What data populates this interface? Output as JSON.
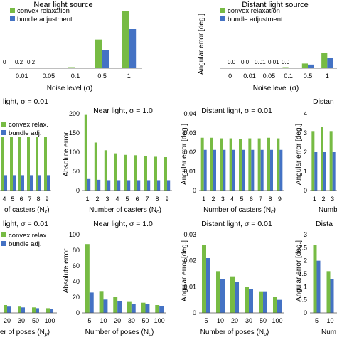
{
  "colors": {
    "convex": "#77bb44",
    "bundle": "#4472c4",
    "axis": "#555555"
  },
  "chart_data": [
    {
      "type": "bar",
      "title": "Near light source",
      "xlabel": "Noise level (σ)",
      "ylabel": "",
      "categories": [
        "0.01",
        "0.05",
        "0.1",
        "0.5",
        "1"
      ],
      "ylim": [
        0,
        1.2
      ],
      "legend": "top-left",
      "series": [
        {
          "name": "convex relaxation",
          "values": [
            0.0,
            0.01,
            0.02,
            0.55,
            1.1
          ]
        },
        {
          "name": "bundle adjustment",
          "values": [
            0.0,
            0.005,
            0.01,
            0.35,
            0.75
          ]
        }
      ],
      "annotations": [
        "0",
        "0.2",
        "0.2"
      ]
    },
    {
      "type": "bar",
      "title": "Distant light source",
      "xlabel": "Noise level (σ)",
      "ylabel": "Angular error [deg.]",
      "categories": [
        "0",
        "0.01",
        "0.05",
        "0.1",
        "0.5",
        "1"
      ],
      "ylim": [
        0,
        1.2
      ],
      "legend": "top-left",
      "series": [
        {
          "name": "convex relaxation",
          "values": [
            0.0,
            0.0,
            0.01,
            0.02,
            0.09,
            0.3
          ]
        },
        {
          "name": "bundle adjustment",
          "values": [
            0.0,
            0.0,
            0.005,
            0.01,
            0.07,
            0.2
          ]
        }
      ],
      "annotations": [
        "0.0",
        "0.0",
        "0.01",
        "0.01",
        "0.0"
      ]
    },
    {
      "type": "bar",
      "title": "light, σ = 0.01",
      "xlabel": "of casters (N",
      "xsub": "c",
      "categories": [
        "4",
        "5",
        "6",
        "7",
        "8",
        "9"
      ],
      "ylim": [
        0,
        100
      ],
      "legend": "top-left",
      "series": [
        {
          "name": "convex relax.",
          "values": [
            70,
            70,
            70,
            70,
            70,
            70
          ]
        },
        {
          "name": "bundle adj.",
          "values": [
            20,
            20,
            20,
            20,
            20,
            20
          ]
        }
      ]
    },
    {
      "type": "bar",
      "title": "Near light, σ = 1.0",
      "xlabel": "Number of casters (N",
      "xsub": "c",
      "ylabel": "Absolute error",
      "categories": [
        "1",
        "2",
        "3",
        "4",
        "5",
        "6",
        "7",
        "8",
        "9"
      ],
      "ylim": [
        0,
        200
      ],
      "yticks": [
        "0",
        "50",
        "100",
        "150",
        "200"
      ],
      "series": [
        {
          "name": "convex relax.",
          "values": [
            197,
            125,
            105,
            97,
            93,
            92,
            90,
            88,
            87
          ]
        },
        {
          "name": "bundle adj.",
          "values": [
            30,
            28,
            27,
            27,
            27,
            27,
            27,
            27,
            27
          ]
        }
      ]
    },
    {
      "type": "bar",
      "title": "Distant light, σ = 0.01",
      "xlabel": "Number of casters (N",
      "xsub": "c",
      "ylabel": "Angular error [deg.]",
      "categories": [
        "1",
        "2",
        "3",
        "4",
        "5",
        "6",
        "7",
        "8",
        "9"
      ],
      "ylim": [
        0,
        0.04
      ],
      "yticks": [
        "0",
        "0.01",
        "0.02",
        "0.03",
        "0.04"
      ],
      "series": [
        {
          "name": "convex relax.",
          "values": [
            0.0275,
            0.0275,
            0.0272,
            0.0272,
            0.0268,
            0.0272,
            0.0272,
            0.0275,
            0.0272
          ]
        },
        {
          "name": "bundle adj.",
          "values": [
            0.0212,
            0.0212,
            0.0212,
            0.0212,
            0.0212,
            0.0212,
            0.0212,
            0.0212,
            0.0212
          ]
        }
      ]
    },
    {
      "type": "bar",
      "title": "Distan",
      "xlabel": "Numbe",
      "ylabel": "Angular error [deg.]",
      "categories": [
        "1",
        "2",
        "3"
      ],
      "ylim": [
        0,
        4
      ],
      "yticks": [
        "0",
        "1",
        "2",
        "3",
        "4"
      ],
      "series": [
        {
          "name": "convex relax.",
          "values": [
            3.1,
            3.3,
            3.1
          ]
        },
        {
          "name": "bundle adj.",
          "values": [
            2.0,
            2.0,
            2.0
          ]
        }
      ]
    },
    {
      "type": "bar",
      "title": "light, σ = 0.01",
      "xlabel": "er of poses (N",
      "xsub": "p",
      "categories": [
        "20",
        "30",
        "50",
        "100"
      ],
      "ylim": [
        0,
        100
      ],
      "legend": "top-left",
      "series": [
        {
          "name": "convex relax.",
          "values": [
            10,
            8,
            7,
            6
          ]
        },
        {
          "name": "bundle adj.",
          "values": [
            8,
            7,
            6,
            5
          ]
        }
      ]
    },
    {
      "type": "bar",
      "title": "Near light, σ = 1.0",
      "xlabel": "Number of poses (N",
      "xsub": "p",
      "ylabel": "Absolute error",
      "categories": [
        "5",
        "10",
        "20",
        "30",
        "50",
        "100"
      ],
      "ylim": [
        0,
        100
      ],
      "yticks": [
        "0",
        "20",
        "40",
        "60",
        "80",
        "100"
      ],
      "series": [
        {
          "name": "convex relax.",
          "values": [
            88,
            27,
            20,
            14,
            13,
            10
          ]
        },
        {
          "name": "bundle adj.",
          "values": [
            26,
            17,
            15,
            11,
            11,
            9
          ]
        }
      ]
    },
    {
      "type": "bar",
      "title": "Distant light, σ = 0.01",
      "xlabel": "Number of poses (N",
      "xsub": "p",
      "ylabel": "Angular error [deg.]",
      "categories": [
        "5",
        "10",
        "20",
        "30",
        "50",
        "100"
      ],
      "ylim": [
        0,
        0.03
      ],
      "yticks": [
        "0",
        "0.01",
        "0.02",
        "0.03"
      ],
      "series": [
        {
          "name": "convex relax.",
          "values": [
            0.026,
            0.016,
            0.014,
            0.01,
            0.008,
            0.006
          ]
        },
        {
          "name": "bundle adj.",
          "values": [
            0.021,
            0.013,
            0.012,
            0.009,
            0.008,
            0.005
          ]
        }
      ]
    },
    {
      "type": "bar",
      "title": "Dista",
      "xlabel": "Num",
      "ylabel": "Angular error [deg.]",
      "categories": [
        "5",
        "10"
      ],
      "ylim": [
        0,
        3
      ],
      "yticks": [
        "0",
        "0.5",
        "1",
        "1.5",
        "2",
        "2.5",
        "3"
      ],
      "series": [
        {
          "name": "convex relax.",
          "values": [
            2.6,
            1.6
          ]
        },
        {
          "name": "bundle adj.",
          "values": [
            2.0,
            1.3
          ]
        }
      ]
    }
  ]
}
